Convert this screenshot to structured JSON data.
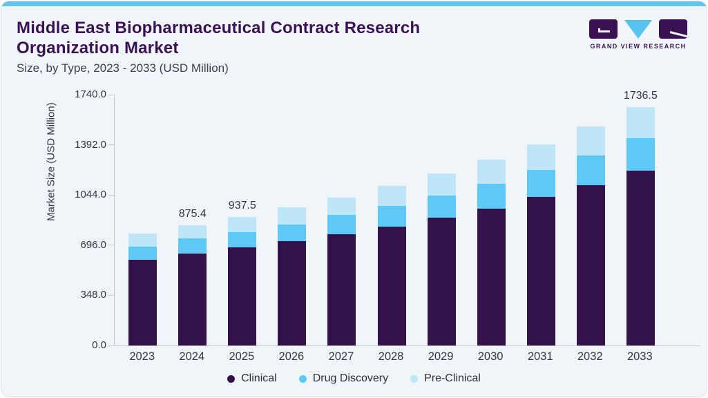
{
  "page": {
    "background": "#f0f5f9",
    "accent_bar_color": "#63c6ef"
  },
  "header": {
    "title": "Middle East Biopharmaceutical Contract Research Organization Market",
    "subtitle": "Size, by Type, 2023 - 2033 (USD Million)",
    "logo": {
      "brand": "GRAND VIEW RESEARCH",
      "dark_color": "#3a1253",
      "blue_color": "#56c4f1"
    }
  },
  "chart_data": {
    "type": "bar",
    "stacked": true,
    "ylabel": "Market Size (USD Million)",
    "xlabel": "",
    "ylim": [
      0,
      1740
    ],
    "ytick_labels": [
      "0.0",
      "348.0",
      "696.0",
      "1044.0",
      "1392.0",
      "1740.0"
    ],
    "yticks": [
      0,
      348,
      696,
      1044,
      1392,
      1740
    ],
    "grid": "off",
    "legend_position": "bottom",
    "categories": [
      "2023",
      "2024",
      "2025",
      "2026",
      "2027",
      "2028",
      "2029",
      "2030",
      "2031",
      "2032",
      "2033"
    ],
    "series": [
      {
        "name": "Clinical",
        "color": "#331249",
        "values": [
          622.0,
          670.6,
          712.4,
          761.0,
          808.0,
          866.5,
          928.5,
          997.5,
          1079.0,
          1164.5,
          1272.5
        ]
      },
      {
        "name": "Drug Discovery",
        "color": "#5ec9f4",
        "values": [
          99.0,
          109.1,
          112.6,
          119.0,
          143.0,
          151.0,
          163.0,
          177.0,
          196.0,
          220.0,
          236.0
        ]
      },
      {
        "name": "Pre-Clinical",
        "color": "#bfe6f8",
        "values": [
          94.0,
          95.7,
          112.5,
          127.0,
          125.0,
          142.0,
          160.5,
          176.5,
          186.0,
          207.5,
          228.0
        ]
      }
    ],
    "totals": [
      815.0,
      875.4,
      937.5,
      1007.0,
      1076.0,
      1159.5,
      1252.0,
      1351.0,
      1461.0,
      1592.0,
      1736.5
    ],
    "bar_labels": [
      "",
      "875.4",
      "937.5",
      "",
      "",
      "",
      "",
      "",
      "",
      "",
      "1736.5"
    ]
  }
}
